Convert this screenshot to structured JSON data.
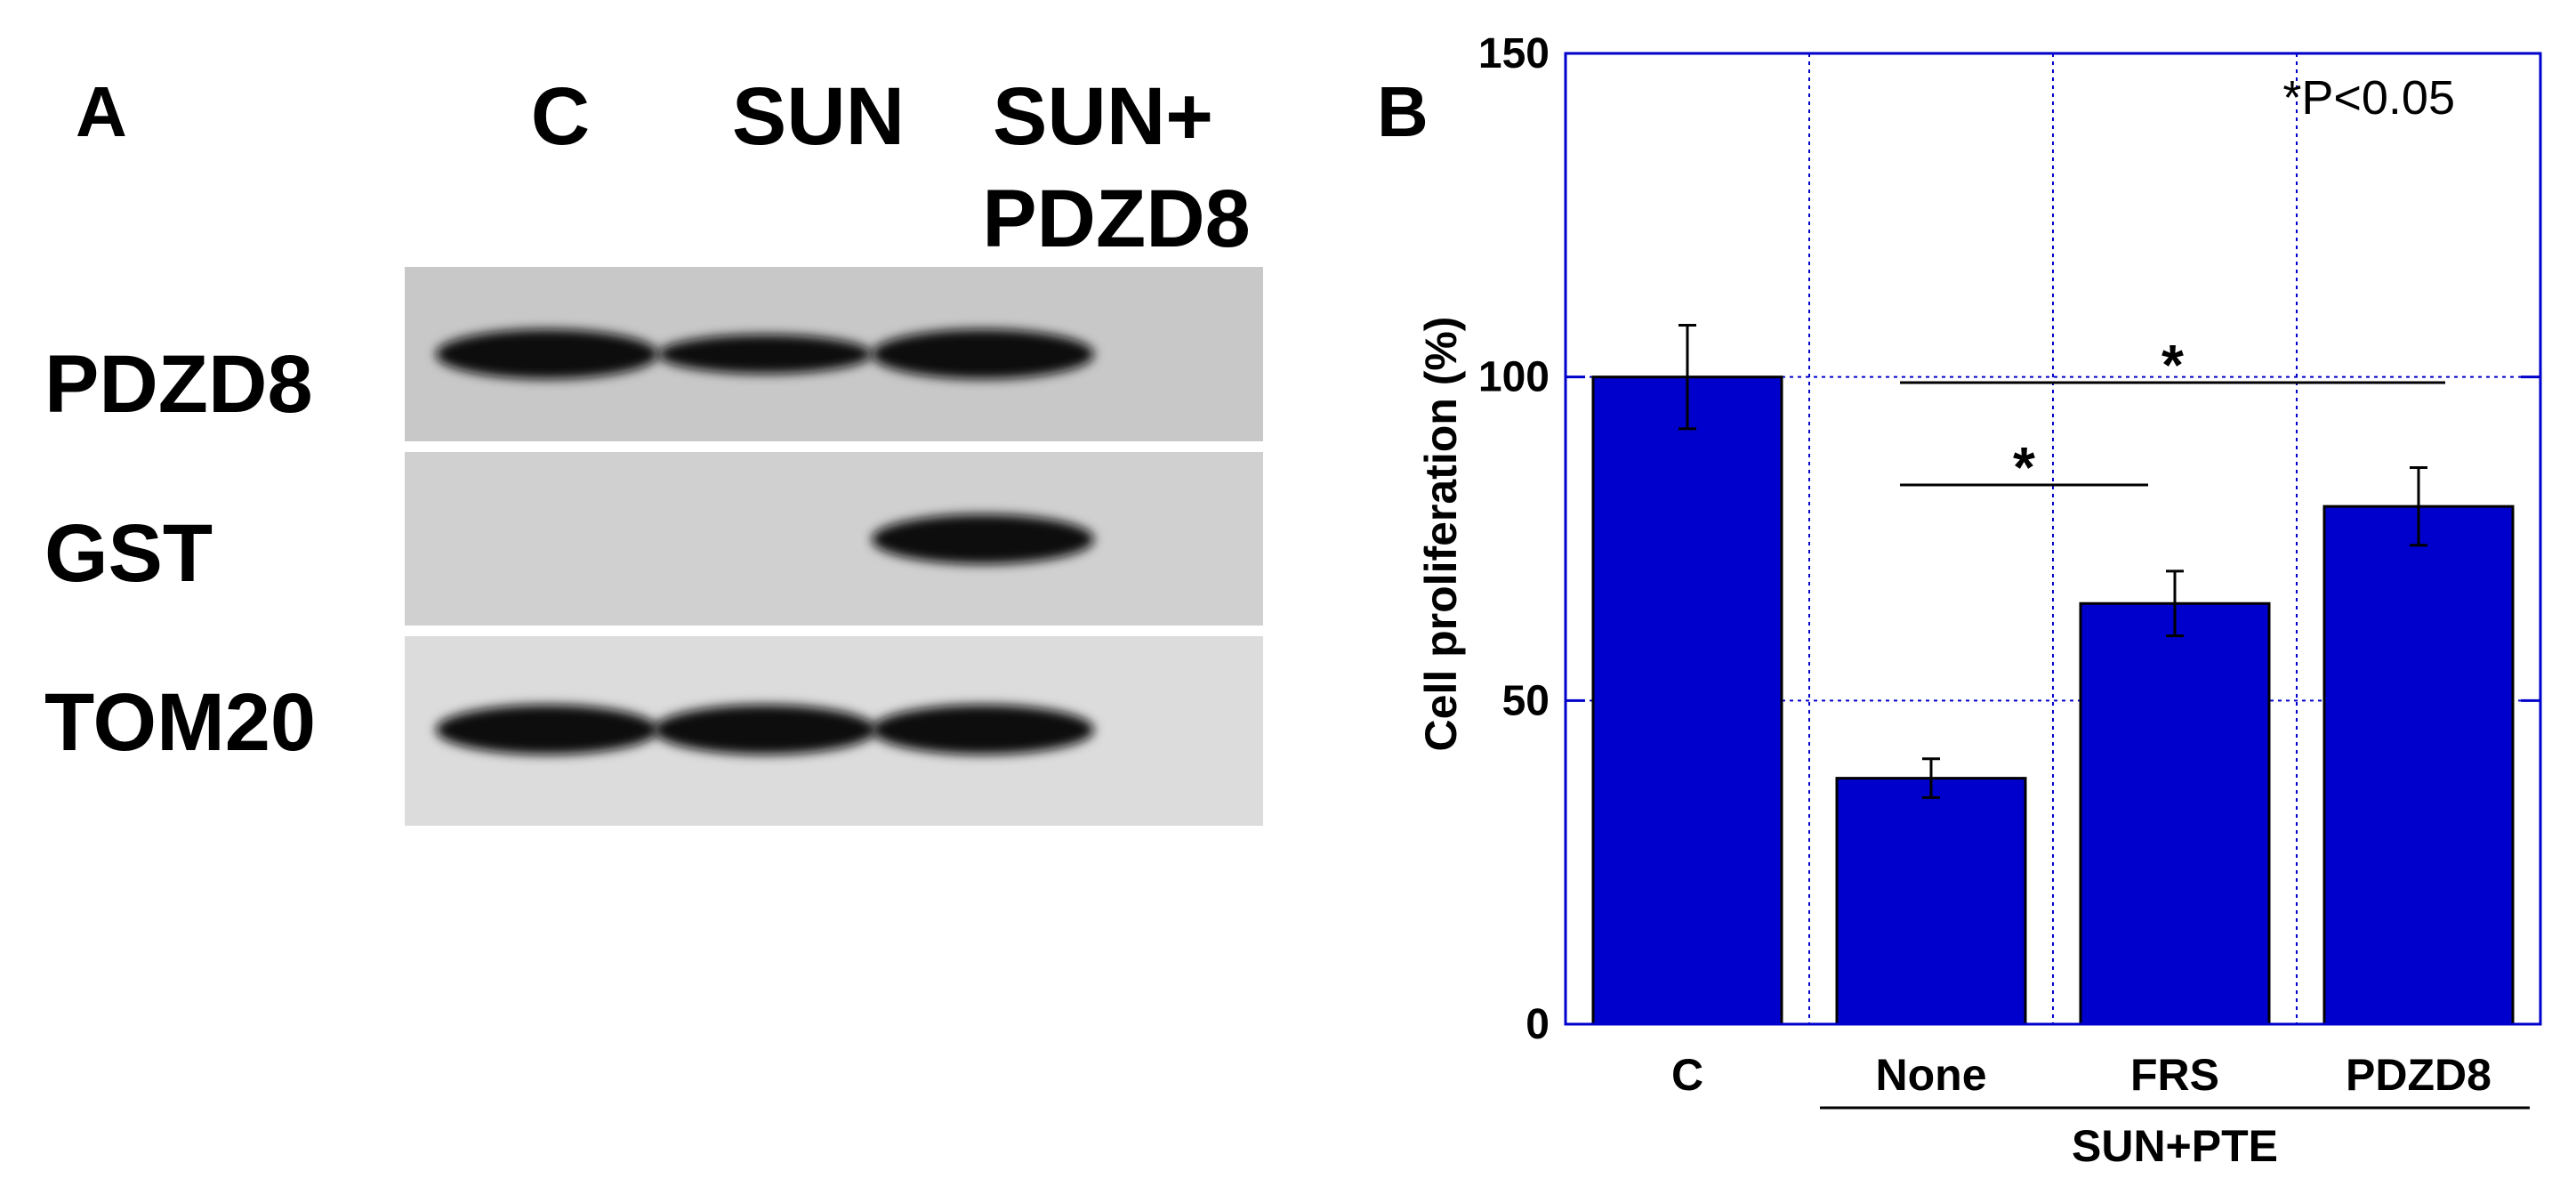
{
  "panel_a": {
    "label": "A",
    "lanes": [
      "C",
      "SUN",
      "SUN+\nPDZD8"
    ],
    "lane_lines": [
      "C",
      "SUN",
      "SUN+",
      "PDZD8"
    ],
    "rows": [
      "PDZD8",
      "GST",
      "TOM20"
    ],
    "band_intensity": {
      "PDZD8": [
        1.0,
        0.75,
        1.0
      ],
      "GST": [
        0,
        0,
        1.0
      ],
      "TOM20": [
        1.0,
        1.0,
        1.0
      ]
    }
  },
  "panel_b": {
    "label": "B",
    "significance_note": "*P<0.05",
    "star": "*",
    "group_label": "SUN+PTE"
  },
  "colors": {
    "bar": "#0000cc",
    "axis": "#0000cc",
    "grid": "#0000cc",
    "blot_background": "#d2d2d2",
    "band": "#111111"
  },
  "chart_data": {
    "type": "bar",
    "title": "",
    "xlabel": "",
    "ylabel": "Cell proliferation (%)",
    "categories": [
      "C",
      "None",
      "FRS",
      "PDZD8"
    ],
    "values": [
      100,
      38,
      65,
      80
    ],
    "errors": [
      8,
      3,
      5,
      6
    ],
    "ylim": [
      0,
      150
    ],
    "yticks": [
      0,
      50,
      100,
      150
    ],
    "grid": true,
    "comparisons": [
      {
        "from": "None",
        "to": "FRS",
        "label": "*"
      },
      {
        "from": "None",
        "to": "PDZD8",
        "label": "*"
      }
    ],
    "group": {
      "label": "SUN+PTE",
      "categories": [
        "None",
        "FRS",
        "PDZD8"
      ]
    }
  }
}
